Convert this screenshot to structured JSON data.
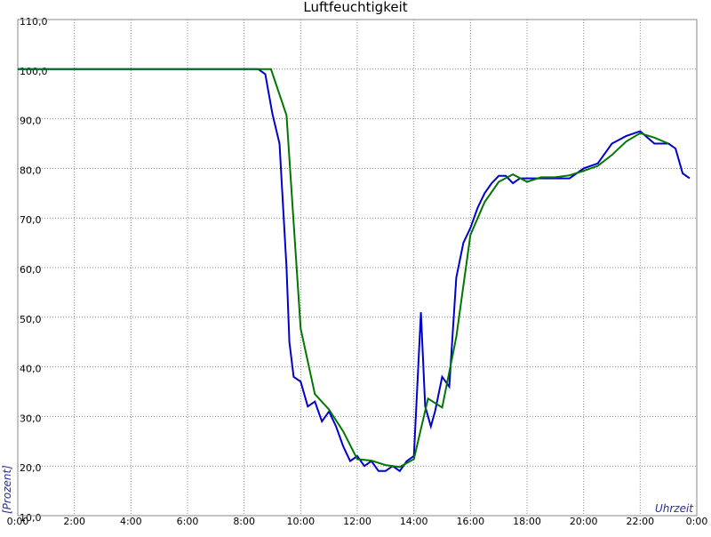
{
  "chart_data": {
    "type": "line",
    "title": "Luftfeuchtigkeit",
    "x_label": "Uhrzeit",
    "y_label": "[Prozent]",
    "xlim": [
      0,
      24
    ],
    "ylim": [
      10,
      110
    ],
    "grid": true,
    "xticks": [
      {
        "value": 0,
        "label": "0:00"
      },
      {
        "value": 2,
        "label": "2:00"
      },
      {
        "value": 4,
        "label": "4:00"
      },
      {
        "value": 6,
        "label": "6:00"
      },
      {
        "value": 8,
        "label": "8:00"
      },
      {
        "value": 10,
        "label": "10:00"
      },
      {
        "value": 12,
        "label": "12:00"
      },
      {
        "value": 14,
        "label": "14:00"
      },
      {
        "value": 16,
        "label": "16:00"
      },
      {
        "value": 18,
        "label": "18:00"
      },
      {
        "value": 20,
        "label": "20:00"
      },
      {
        "value": 22,
        "label": "22:00"
      },
      {
        "value": 24,
        "label": "0:00"
      }
    ],
    "yticks": [
      {
        "value": 10,
        "label": "10,0"
      },
      {
        "value": 20,
        "label": "20,0"
      },
      {
        "value": 30,
        "label": "30,0"
      },
      {
        "value": 40,
        "label": "40,0"
      },
      {
        "value": 50,
        "label": "50,0"
      },
      {
        "value": 60,
        "label": "60,0"
      },
      {
        "value": 70,
        "label": "70,0"
      },
      {
        "value": 80,
        "label": "80,0"
      },
      {
        "value": 90,
        "label": "90,0"
      },
      {
        "value": 100,
        "label": "100,0"
      },
      {
        "value": 110,
        "label": "110,0"
      }
    ],
    "series": [
      {
        "color": "#0000cc",
        "x": [
          0,
          8.5,
          8.75,
          9.0,
          9.25,
          9.5,
          9.6,
          9.75,
          10.0,
          10.25,
          10.5,
          10.75,
          11.0,
          11.25,
          11.5,
          11.75,
          12.0,
          12.25,
          12.5,
          12.75,
          13.0,
          13.25,
          13.5,
          13.75,
          14.0,
          14.25,
          14.4,
          14.6,
          14.75,
          15.0,
          15.25,
          15.5,
          15.75,
          16.0,
          16.25,
          16.5,
          16.75,
          17.0,
          17.25,
          17.5,
          17.75,
          18.0,
          18.5,
          19.0,
          19.5,
          20.0,
          20.5,
          21.0,
          21.5,
          22.0,
          22.5,
          23.0,
          23.25,
          23.5,
          23.75
        ],
        "values": [
          100,
          100,
          99,
          91,
          85,
          60,
          45,
          38,
          37,
          32,
          33,
          29,
          31,
          28,
          24,
          21,
          22,
          20,
          21,
          19,
          19,
          20,
          19,
          21,
          22,
          51,
          32,
          28,
          31,
          38,
          36,
          58,
          65,
          68,
          72,
          75,
          77,
          78.5,
          78.5,
          77,
          78,
          78,
          78,
          78,
          78,
          80,
          81,
          85,
          86.5,
          87.5,
          85,
          85,
          84,
          79,
          78
        ]
      },
      {
        "color": "#007700",
        "x": [
          0,
          8.5,
          8.95,
          9.5,
          10.0,
          10.5,
          11.0,
          11.5,
          12.0,
          12.5,
          13.0,
          13.5,
          14.0,
          14.5,
          15.0,
          15.5,
          16.0,
          16.5,
          17.0,
          17.5,
          18.0,
          18.5,
          19.0,
          19.5,
          20.0,
          20.5,
          21.0,
          21.5,
          22.0,
          22.5,
          23.0
        ],
        "values": [
          100,
          100,
          100,
          90.7,
          47.7,
          34.5,
          31.4,
          27,
          21.4,
          21.1,
          20.2,
          19.8,
          21.4,
          33.6,
          31.8,
          46,
          66.6,
          73.2,
          77.3,
          78.8,
          77.3,
          78.2,
          78.2,
          78.6,
          79.5,
          80.5,
          82.7,
          85.4,
          87.1,
          86.2,
          85
        ]
      }
    ]
  }
}
